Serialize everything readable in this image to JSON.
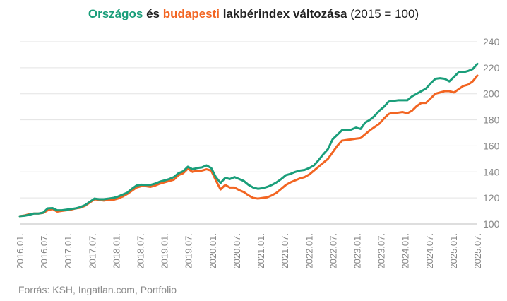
{
  "title": {
    "part1": "Országos",
    "part2": " és ",
    "part3": "budapesti",
    "part4": " lakbérindex változása",
    "part5": " (2015 = 100)"
  },
  "source": "Forrás: KSH, Ingatlan.com, Portfolio",
  "colors": {
    "orszagos": "#1a9e7a",
    "budapesti": "#f26522",
    "grid": "#e3e3e3",
    "text": "#888888"
  },
  "chart_data": {
    "type": "line",
    "title": "Országos és budapesti lakbérindex változása (2015 = 100)",
    "xlabel": "",
    "ylabel": "",
    "ylim": [
      100,
      240
    ],
    "yticks": [
      100,
      120,
      140,
      160,
      180,
      200,
      220,
      240
    ],
    "y_axis_position": "right",
    "grid": true,
    "legend": "none (series named in title colors)",
    "x_tick_labels": [
      "2016.01.",
      "2016.07.",
      "2017.01.",
      "2017.07.",
      "2018.01.",
      "2018.07.",
      "2019.01.",
      "2019.07.",
      "2020.01.",
      "2020.07.",
      "2021.01.",
      "2021.07.",
      "2022.01.",
      "2022.07.",
      "2023.01.",
      "2023.07.",
      "2024.01.",
      "2024.07.",
      "2025.01.",
      "2025.07."
    ],
    "series": [
      {
        "name": "Országos",
        "color": "#1a9e7a",
        "values": [
          106.0,
          106.3,
          107.0,
          108.0,
          108.0,
          108.7,
          112.0,
          112.2,
          110.5,
          110.5,
          111.0,
          111.5,
          112.0,
          113.0,
          114.5,
          117.0,
          119.5,
          119.0,
          119.0,
          119.5,
          120.0,
          121.0,
          122.5,
          124.0,
          127.0,
          129.5,
          130.2,
          130.0,
          130.0,
          131.0,
          132.5,
          133.5,
          134.5,
          136.0,
          139.0,
          140.5,
          144.0,
          142.0,
          143.0,
          143.5,
          145.0,
          143.0,
          136.0,
          131.5,
          135.5,
          134.5,
          136.0,
          134.5,
          133.0,
          130.0,
          128.0,
          127.0,
          127.5,
          128.5,
          130.0,
          132.0,
          134.5,
          137.5,
          138.5,
          140.0,
          141.0,
          141.5,
          143.0,
          145.0,
          149.0,
          153.5,
          157.5,
          165.0,
          168.5,
          172.0,
          172.0,
          172.5,
          174.0,
          173.0,
          178.0,
          180.0,
          183.0,
          187.0,
          190.0,
          194.0,
          194.5,
          195.0,
          195.0,
          195.0,
          198.0,
          200.0,
          202.0,
          204.0,
          208.0,
          211.5,
          212.0,
          211.5,
          209.5,
          213.0,
          216.5,
          216.5,
          217.5,
          219.0,
          223.0
        ]
      },
      {
        "name": "Budapesti",
        "color": "#f26522",
        "values": [
          106.0,
          106.5,
          107.5,
          108.0,
          108.0,
          108.5,
          110.5,
          111.5,
          109.5,
          110.0,
          110.5,
          111.0,
          112.0,
          112.5,
          114.0,
          116.5,
          119.0,
          118.5,
          118.0,
          118.5,
          118.5,
          119.5,
          121.0,
          123.0,
          125.5,
          128.0,
          129.0,
          129.0,
          128.5,
          129.5,
          131.0,
          132.0,
          133.0,
          134.0,
          137.5,
          139.0,
          142.5,
          140.0,
          141.0,
          141.0,
          142.0,
          141.0,
          133.5,
          126.5,
          130.0,
          128.0,
          128.0,
          126.0,
          124.5,
          122.0,
          120.0,
          119.5,
          120.0,
          120.5,
          122.0,
          124.0,
          127.0,
          130.0,
          132.0,
          133.5,
          135.0,
          136.0,
          138.0,
          141.0,
          144.0,
          147.0,
          150.0,
          155.0,
          160.0,
          164.0,
          164.5,
          165.0,
          165.5,
          166.0,
          169.0,
          172.0,
          174.5,
          177.0,
          181.0,
          184.5,
          185.5,
          185.5,
          186.0,
          185.0,
          187.0,
          190.5,
          193.0,
          193.0,
          196.5,
          200.0,
          201.0,
          202.0,
          202.0,
          201.0,
          203.5,
          206.0,
          207.0,
          209.5,
          214.0
        ]
      }
    ]
  }
}
